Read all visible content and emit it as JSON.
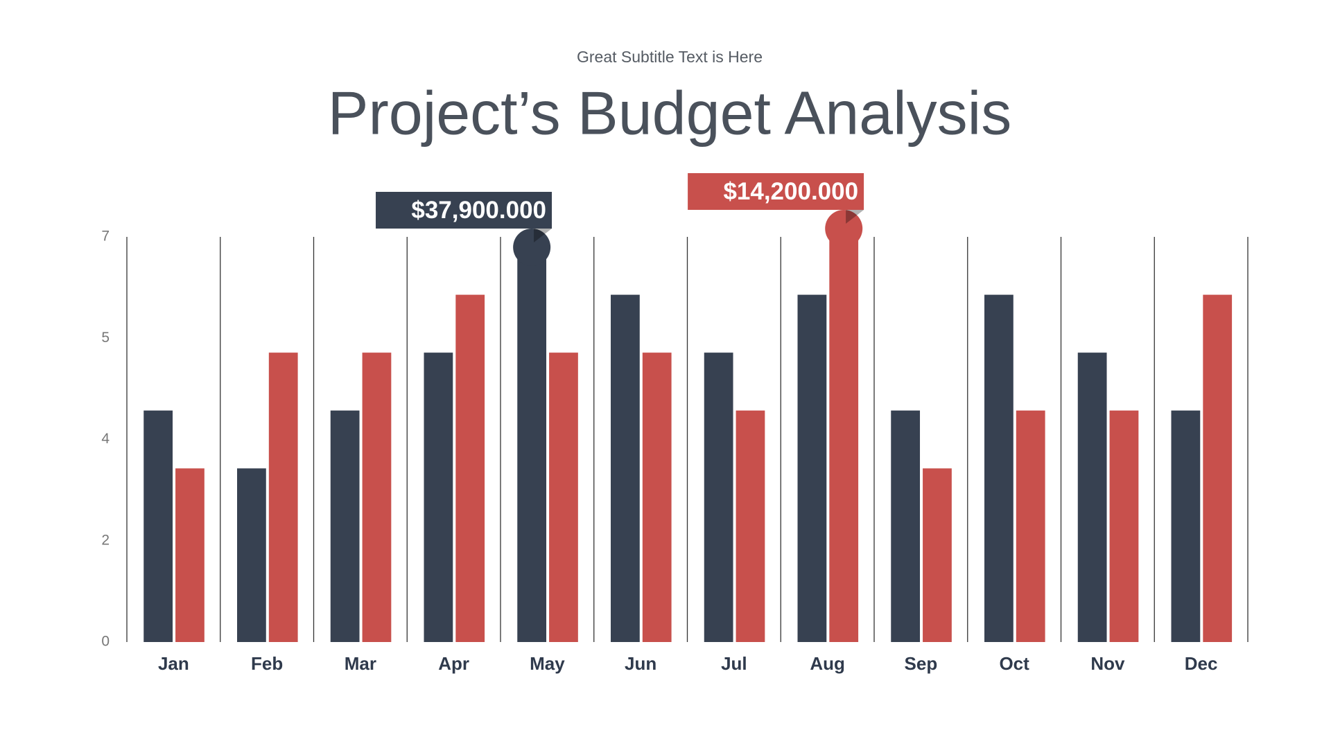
{
  "chart_data": {
    "type": "bar",
    "subtitle": "Great Subtitle Text is Here",
    "title": "Project’s Budget Analysis",
    "categories": [
      "Jan",
      "Feb",
      "Mar",
      "Apr",
      "May",
      "Jun",
      "Jul",
      "Aug",
      "Sep",
      "Oct",
      "Nov",
      "Dec"
    ],
    "series": [
      {
        "color": "#374151",
        "values": [
          4,
          3,
          4,
          5,
          7,
          6,
          5,
          6,
          4,
          6,
          5,
          4
        ]
      },
      {
        "color": "#c8504c",
        "values": [
          3,
          5,
          5,
          6,
          5,
          5,
          4,
          7,
          3,
          4,
          4,
          6
        ]
      }
    ],
    "ylim": [
      0,
      7
    ],
    "yticks": [
      0,
      {
        "value": 1.75,
        "label": "2"
      },
      {
        "value": 3.5,
        "label": "4"
      },
      {
        "value": 5.25,
        "label": "5"
      },
      7
    ],
    "annotations": [
      {
        "text": "$37,900.000",
        "category": "May",
        "color": "#374151"
      },
      {
        "text": "$14,200.000",
        "category": "Aug",
        "color": "#c8504c"
      }
    ]
  }
}
